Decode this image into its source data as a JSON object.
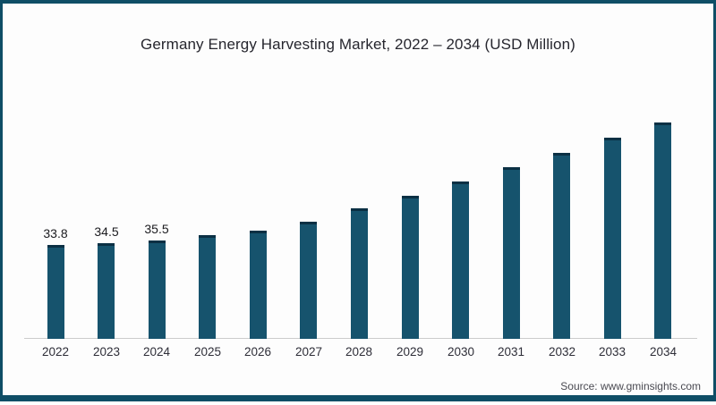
{
  "page": {
    "background": "#fdfdfd",
    "frame_color": "#0f4e66"
  },
  "chart_data": {
    "type": "bar",
    "title": "Germany Energy Harvesting Market, 2022 – 2034 (USD Million)",
    "categories": [
      "2022",
      "2023",
      "2024",
      "2025",
      "2026",
      "2027",
      "2028",
      "2029",
      "2030",
      "2031",
      "2032",
      "2033",
      "2034"
    ],
    "values": [
      33.8,
      34.5,
      35.5,
      37.2,
      39.0,
      42.3,
      47.0,
      51.5,
      56.7,
      61.8,
      67.1,
      72.4,
      77.9
    ],
    "data_labels": [
      "33.8",
      "34.5",
      "35.5",
      "",
      "",
      "",
      "",
      "",
      "",
      "",
      "",
      "",
      ""
    ],
    "xlabel": "",
    "ylabel": "",
    "ylim": [
      0,
      80
    ],
    "grid": false,
    "legend": false,
    "bar_color": "#16536d",
    "bar_top_edge_color": "#0b3044",
    "axis_line_color": "#cccccc"
  },
  "source": {
    "text": "Source: www.gminsights.com"
  }
}
